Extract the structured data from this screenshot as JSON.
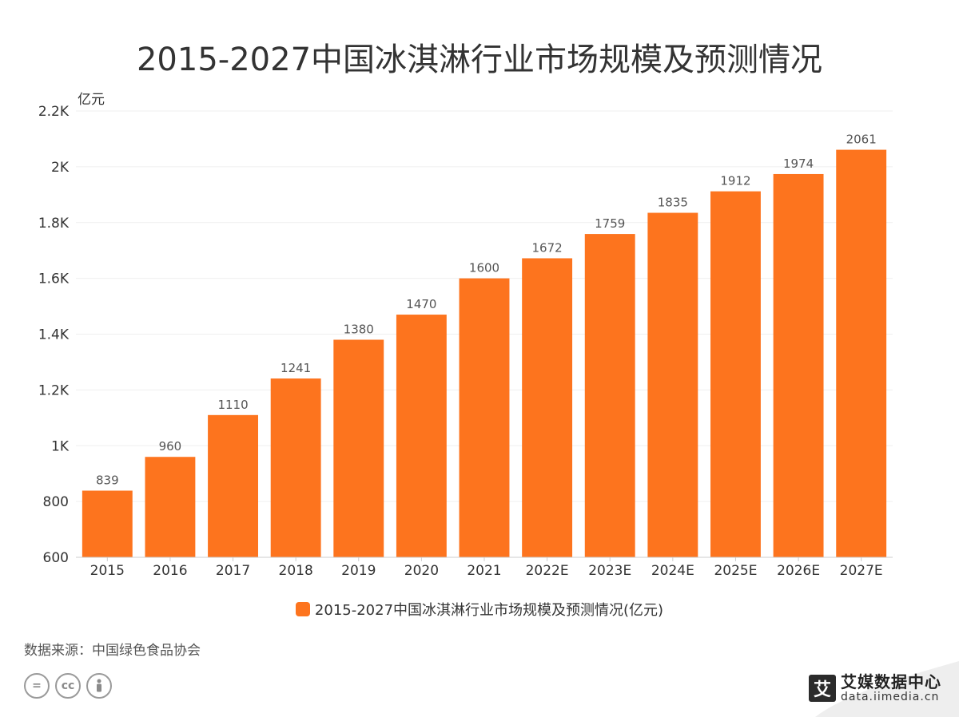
{
  "title": "2015-2027中国冰淇淋行业市场规模及预测情况",
  "source": "数据来源：中国绿色食品协会",
  "brand": {
    "logo_char": "艾",
    "name": "艾媒数据中心",
    "url": "data.iimedia.cn"
  },
  "cc_icons": [
    "equals-icon",
    "cc-icon",
    "person-icon"
  ],
  "colors": {
    "bar": "#fd741e",
    "grid": "#efefef",
    "axis": "#cccccc",
    "text": "#333333"
  },
  "chart_data": {
    "type": "bar",
    "categories": [
      "2015",
      "2016",
      "2017",
      "2018",
      "2019",
      "2020",
      "2021",
      "2022E",
      "2023E",
      "2024E",
      "2025E",
      "2026E",
      "2027E"
    ],
    "series": [
      {
        "name": "2015-2027中国冰淇淋行业市场规模及预测情况(亿元)",
        "values": [
          839,
          960,
          1110,
          1241,
          1380,
          1470,
          1600,
          1672,
          1759,
          1835,
          1912,
          1974,
          2061
        ]
      }
    ],
    "ylabel": "亿元",
    "ylim": [
      600,
      2200
    ],
    "yticks": [
      600,
      800,
      1000,
      1200,
      1400,
      1600,
      1800,
      2000,
      2200
    ],
    "ytick_labels": [
      "600",
      "800",
      "1K",
      "1.2K",
      "1.4K",
      "1.6K",
      "1.8K",
      "2K",
      "2.2K"
    ],
    "grid": true,
    "legend_position": "bottom"
  }
}
